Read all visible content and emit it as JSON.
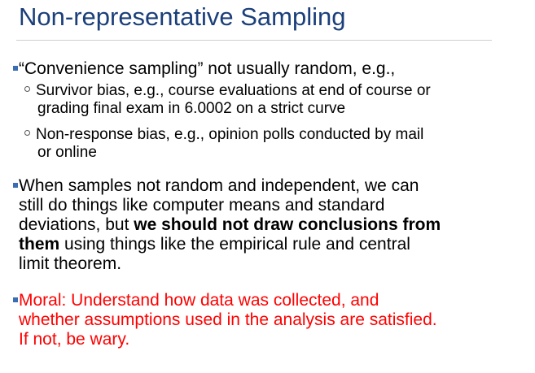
{
  "slide": {
    "title": "Non-representative Sampling",
    "colors": {
      "title": "#1b3f7a",
      "bullet_marker": "#3b6db3",
      "moral_text": "#ff0000",
      "divider": "#cfcfcf"
    },
    "bullets": [
      {
        "text": "“Convenience sampling” not usually random, e.g.,",
        "subs": [
          {
            "line1": "Survivor bias, e.g., course evaluations at end of course or",
            "line2": "grading final exam in 6.0002 on a strict curve"
          },
          {
            "line1": "Non-response bias, e.g., opinion polls conducted by mail",
            "line2": "or online"
          }
        ]
      },
      {
        "line1": "When samples not random and independent, we can",
        "line2": "still do things like computer means and standard",
        "line3_pre": "deviations, but ",
        "line3_bold": "we should not draw conclusions from",
        "line4_bold": "them",
        "line4_post": " using things like the empirical rule and central",
        "line5": "limit theorem."
      },
      {
        "line1": "Moral: Understand how data was collected, and",
        "line2": "whether assumptions used in the analysis are satisfied.",
        "line3": "If not, be wary."
      }
    ]
  }
}
